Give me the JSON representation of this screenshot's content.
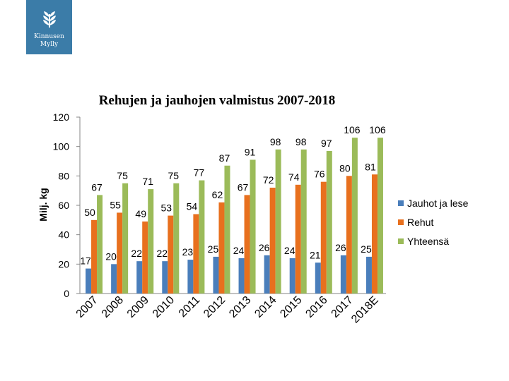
{
  "logo": {
    "line1": "Kinnusen",
    "line2": "Mylly",
    "icon": "wheat-icon",
    "color": "#3b7ca8"
  },
  "chart_data": {
    "type": "bar",
    "title": "Rehujen ja jauhojen valmistus 2007-2018",
    "xlabel": "",
    "ylabel": "Milj. kg",
    "ylim": [
      0,
      120
    ],
    "yticks": [
      0,
      20,
      40,
      60,
      80,
      100,
      120
    ],
    "categories": [
      "2007",
      "2008",
      "2009",
      "2010",
      "2011",
      "2012",
      "2013",
      "2014",
      "2015",
      "2016",
      "2017",
      "2018E"
    ],
    "series": [
      {
        "name": "Jauhot ja lese",
        "color": "#4a7ebb",
        "values": [
          17,
          20,
          22,
          22,
          23,
          25,
          24,
          26,
          24,
          21,
          26,
          25
        ]
      },
      {
        "name": "Rehut",
        "color": "#e8701e",
        "values": [
          50,
          55,
          49,
          53,
          54,
          62,
          67,
          72,
          74,
          76,
          80,
          81
        ]
      },
      {
        "name": "Yhteensä",
        "color": "#9bbb59",
        "values": [
          67,
          75,
          71,
          75,
          77,
          87,
          91,
          98,
          98,
          97,
          106,
          106
        ]
      }
    ],
    "legend_position": "right",
    "grid": false
  }
}
